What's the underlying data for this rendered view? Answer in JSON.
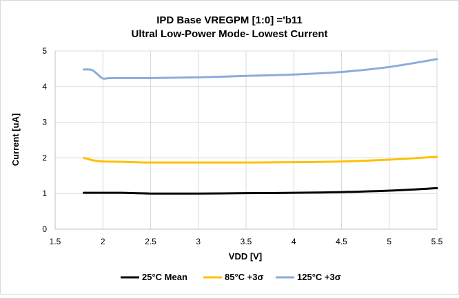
{
  "chart_data": {
    "type": "line",
    "title_lines": [
      "IPD Base VREGPM [1:0] ='b11",
      "Ultral Low-Power Mode- Lowest Current"
    ],
    "xlabel": "VDD [V]",
    "ylabel": "Current [uA]",
    "xlim": [
      1.5,
      5.5
    ],
    "ylim": [
      0,
      5
    ],
    "xticks": [
      1.5,
      2,
      2.5,
      3,
      3.5,
      4,
      4.5,
      5,
      5.5
    ],
    "yticks": [
      0,
      1,
      2,
      3,
      4,
      5
    ],
    "grid": true,
    "legend_position": "bottom",
    "series": [
      {
        "name": "25°C Mean",
        "color": "#000000",
        "x": [
          1.8,
          1.9,
          2.0,
          2.2,
          2.5,
          3.0,
          3.5,
          4.0,
          4.5,
          5.0,
          5.5
        ],
        "y": [
          1.02,
          1.02,
          1.02,
          1.02,
          1.0,
          1.0,
          1.01,
          1.02,
          1.04,
          1.08,
          1.15
        ]
      },
      {
        "name": "85°C +3σ",
        "color": "#ffc000",
        "x": [
          1.8,
          1.9,
          2.0,
          2.2,
          2.5,
          3.0,
          3.5,
          4.0,
          4.5,
          5.0,
          5.5
        ],
        "y": [
          2.0,
          1.93,
          1.9,
          1.89,
          1.87,
          1.87,
          1.87,
          1.88,
          1.9,
          1.95,
          2.03
        ]
      },
      {
        "name": "125°C +3σ",
        "color": "#8eaadb",
        "x": [
          1.8,
          1.88,
          1.93,
          2.0,
          2.1,
          2.5,
          3.0,
          3.5,
          4.0,
          4.5,
          5.0,
          5.5
        ],
        "y": [
          4.48,
          4.47,
          4.38,
          4.23,
          4.24,
          4.24,
          4.26,
          4.3,
          4.34,
          4.41,
          4.55,
          4.77
        ]
      }
    ]
  }
}
